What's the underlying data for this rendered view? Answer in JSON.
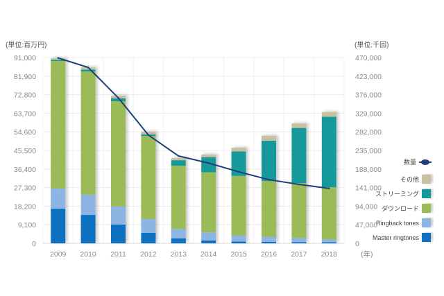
{
  "chart_data": {
    "type": "bar",
    "stacked": true,
    "title": "",
    "left_unit_label": "(単位:百万円)",
    "right_unit_label": "(単位:千回)",
    "x_unit_label": "(年)",
    "categories": [
      "2009",
      "2010",
      "2011",
      "2012",
      "2013",
      "2014",
      "2015",
      "2016",
      "2017",
      "2018"
    ],
    "y_left": {
      "min": 0,
      "max": 91000,
      "ticks": [
        "0",
        "9,100",
        "18,200",
        "27,300",
        "36,400",
        "45,500",
        "54,600",
        "63,700",
        "72,800",
        "81,900",
        "91,000"
      ]
    },
    "y_right": {
      "min": 0,
      "max": 470000,
      "ticks": [
        "0",
        "47,000",
        "94,000",
        "141,000",
        "188,000",
        "235,000",
        "282,000",
        "329,000",
        "376,000",
        "423,000",
        "470,000"
      ]
    },
    "grid": true,
    "legend_position": "right",
    "series": [
      {
        "name": "Master ringtones",
        "color": "#0e6fc0",
        "values": [
          17000,
          13900,
          9200,
          5100,
          2400,
          1400,
          900,
          700,
          600,
          500
        ]
      },
      {
        "name": "Ringback tones",
        "color": "#8eb4e3",
        "values": [
          9800,
          9900,
          8800,
          6800,
          4700,
          4000,
          3000,
          2500,
          2000,
          1400
        ]
      },
      {
        "name": "ダウンロード",
        "color": "#9bbb59",
        "values": [
          62500,
          60400,
          51600,
          40700,
          30900,
          29400,
          29100,
          27300,
          26900,
          25600
        ]
      },
      {
        "name": "ストリーミング",
        "color": "#14999b",
        "values": [
          600,
          900,
          1400,
          700,
          2700,
          7300,
          12000,
          19800,
          27000,
          34500
        ]
      },
      {
        "name": "その他",
        "color": "#c9c0a2",
        "values": [
          800,
          1100,
          1300,
          1400,
          1100,
          1400,
          1800,
          2400,
          2200,
          2300
        ]
      }
    ],
    "line_series": {
      "name": "数量",
      "axis": "right",
      "color": "#1f3f78",
      "values": [
        469000,
        445000,
        368000,
        274000,
        221000,
        203000,
        181000,
        161000,
        149000,
        139000
      ]
    }
  }
}
